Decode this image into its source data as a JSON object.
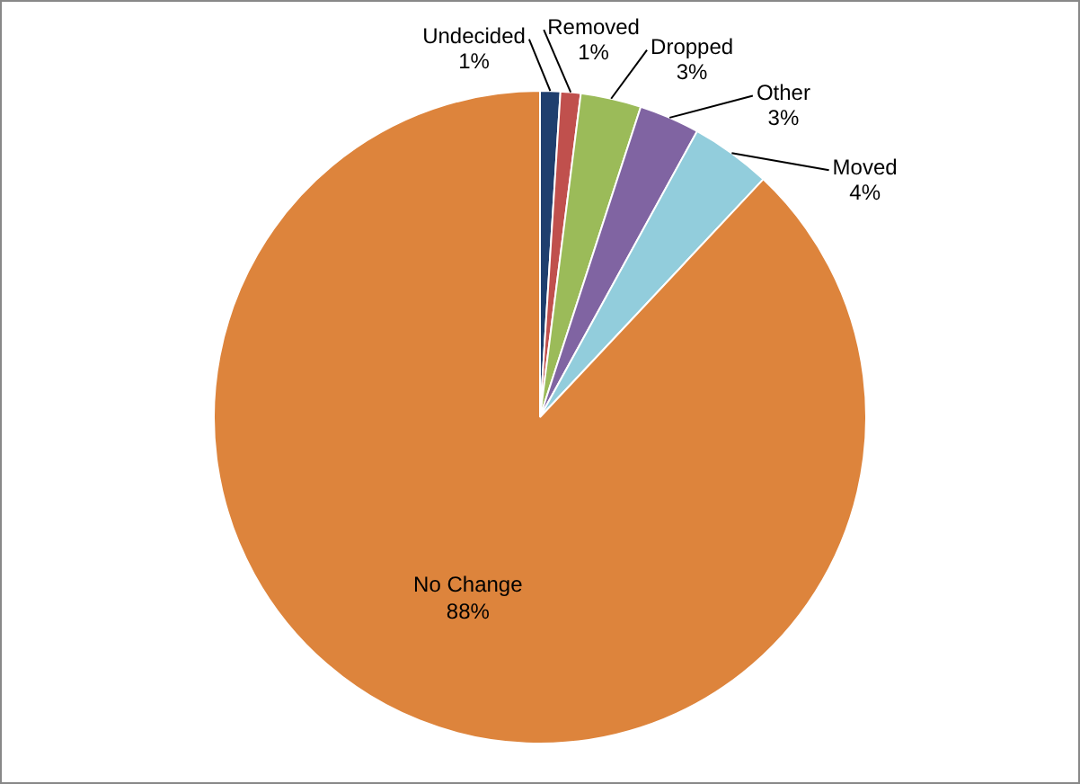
{
  "chart_data": {
    "type": "pie",
    "categories": [
      "Undecided",
      "Removed",
      "Dropped",
      "Other",
      "Moved",
      "No Change"
    ],
    "values": [
      1,
      1,
      3,
      3,
      4,
      88
    ],
    "colors": [
      "#1f3f6e",
      "#c0504d",
      "#9bbb59",
      "#8064a2",
      "#92cddc",
      "#dd843c"
    ],
    "value_labels": [
      "1%",
      "1%",
      "3%",
      "3%",
      "4%",
      "88%"
    ],
    "legend": false
  }
}
